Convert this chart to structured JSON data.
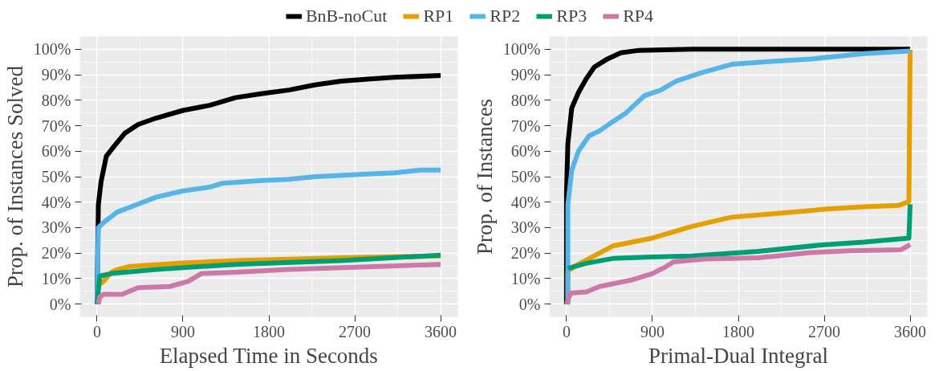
{
  "chart_data": [
    {
      "type": "line",
      "xlabel": "Elapsed Time in Seconds",
      "ylabel": "Prop. of Instances Solved",
      "xlim": [
        -180,
        3780
      ],
      "ylim": [
        -5,
        105
      ],
      "xticks": [
        0,
        900,
        1800,
        2700,
        3600
      ],
      "yticks": [
        {
          "value": 0,
          "label": "0%"
        },
        {
          "value": 10,
          "label": "10%"
        },
        {
          "value": 20,
          "label": "20%"
        },
        {
          "value": 30,
          "label": "30%"
        },
        {
          "value": 40,
          "label": "40%"
        },
        {
          "value": 50,
          "label": "50%"
        },
        {
          "value": 60,
          "label": "60%"
        },
        {
          "value": 70,
          "label": "70%"
        },
        {
          "value": 80,
          "label": "80%"
        },
        {
          "value": 90,
          "label": "90%"
        },
        {
          "value": 100,
          "label": "100%"
        }
      ],
      "grid": true,
      "legend": "top",
      "line_style": "solid",
      "series": [
        {
          "name": "BnB-noCut",
          "color": "#000000",
          "x": [
            0,
            14,
            42,
            97,
            180,
            290,
            430,
            620,
            900,
            1180,
            1450,
            1730,
            2010,
            2280,
            2560,
            2840,
            3115,
            3600
          ],
          "values": [
            0,
            39,
            48,
            58,
            62,
            67,
            70.5,
            73,
            76,
            78,
            81,
            82.6,
            84,
            86,
            87.5,
            88.3,
            89,
            89.7
          ]
        },
        {
          "name": "RP1",
          "color": "#e69f00",
          "x": [
            0,
            14,
            69,
            152,
            208,
            346,
            900,
            1454,
            2560,
            3600
          ],
          "values": [
            0,
            7.4,
            9,
            12.5,
            13.5,
            14.8,
            16.1,
            17.1,
            18.2,
            18.9
          ]
        },
        {
          "name": "RP2",
          "color": "#56b4e9",
          "x": [
            0,
            14,
            69,
            208,
            346,
            623,
            900,
            1177,
            1315,
            1730,
            2010,
            2285,
            2840,
            3115,
            3390,
            3600
          ],
          "values": [
            0,
            30,
            32,
            36,
            38,
            42,
            44.4,
            45.9,
            47.4,
            48.5,
            49,
            50,
            51,
            51.5,
            52.6,
            52.6
          ]
        },
        {
          "name": "RP3",
          "color": "#009e73",
          "x": [
            0,
            28,
            152,
            623,
            1454,
            2560,
            3600
          ],
          "values": [
            0,
            11,
            12,
            13.6,
            15.6,
            17.1,
            19.2
          ]
        },
        {
          "name": "RP4",
          "color": "#cc79a7",
          "x": [
            14,
            28,
            69,
            263,
            430,
            761,
            955,
            1094,
            1454,
            2010,
            2840,
            3600
          ],
          "values": [
            0,
            2.8,
            3.8,
            3.8,
            6.4,
            6.9,
            8.9,
            12,
            12.5,
            13.6,
            14.6,
            15.6
          ]
        }
      ]
    },
    {
      "type": "line",
      "xlabel": "Primal-Dual Integral",
      "ylabel": "Prop. of Instances",
      "xlim": [
        -180,
        3780
      ],
      "ylim": [
        -5,
        105
      ],
      "xticks": [
        0,
        900,
        1800,
        2700,
        3600
      ],
      "yticks": [
        {
          "value": 0,
          "label": "0%"
        },
        {
          "value": 10,
          "label": "10%"
        },
        {
          "value": 20,
          "label": "20%"
        },
        {
          "value": 30,
          "label": "30%"
        },
        {
          "value": 40,
          "label": "40%"
        },
        {
          "value": 50,
          "label": "50%"
        },
        {
          "value": 60,
          "label": "60%"
        },
        {
          "value": 70,
          "label": "70%"
        },
        {
          "value": 80,
          "label": "80%"
        },
        {
          "value": 90,
          "label": "90%"
        },
        {
          "value": 100,
          "label": "100%"
        }
      ],
      "grid": true,
      "line_style": "solid",
      "series": [
        {
          "color": "#000000",
          "x": [
            0,
            0,
            14,
            55,
            125,
            208,
            291,
            429,
            568,
            762,
            1315,
            3600
          ],
          "values": [
            0,
            44,
            63,
            77,
            83,
            88.5,
            93,
            96.2,
            98.6,
            99.6,
            100,
            100
          ]
        },
        {
          "color": "#e69f00",
          "x": [
            14,
            14,
            125,
            485,
            900,
            1315,
            1730,
            2285,
            2700,
            3115,
            3475,
            3587,
            3600
          ],
          "values": [
            0,
            13,
            15.6,
            22.8,
            25.9,
            30.5,
            34.1,
            35.8,
            37.2,
            38.2,
            38.7,
            40.2,
            99.8
          ]
        },
        {
          "color": "#56b4e9",
          "x": [
            14,
            14,
            55,
            125,
            235,
            346,
            485,
            623,
            817,
            983,
            1150,
            1398,
            1730,
            2146,
            2561,
            3115,
            3600
          ],
          "values": [
            0,
            39,
            52.6,
            60,
            66,
            68,
            71.6,
            75,
            81.8,
            83.9,
            87.5,
            90.6,
            94.1,
            95.2,
            96.2,
            98.3,
            99.3
          ]
        },
        {
          "color": "#009e73",
          "x": [
            14,
            208,
            485,
            900,
            1315,
            2010,
            2700,
            3115,
            3587,
            3600
          ],
          "values": [
            14,
            16,
            17.9,
            18.5,
            18.9,
            20.7,
            23.3,
            24.3,
            25.9,
            39.2
          ]
        },
        {
          "color": "#cc79a7",
          "x": [
            0,
            42,
            208,
            346,
            678,
            900,
            1038,
            1122,
            1454,
            2010,
            2560,
            2976,
            3503,
            3600
          ],
          "values": [
            0,
            4.3,
            4.8,
            6.9,
            9.4,
            12,
            14.6,
            16.6,
            17.7,
            18.2,
            20.2,
            20.9,
            21.3,
            23.3
          ]
        }
      ]
    }
  ]
}
